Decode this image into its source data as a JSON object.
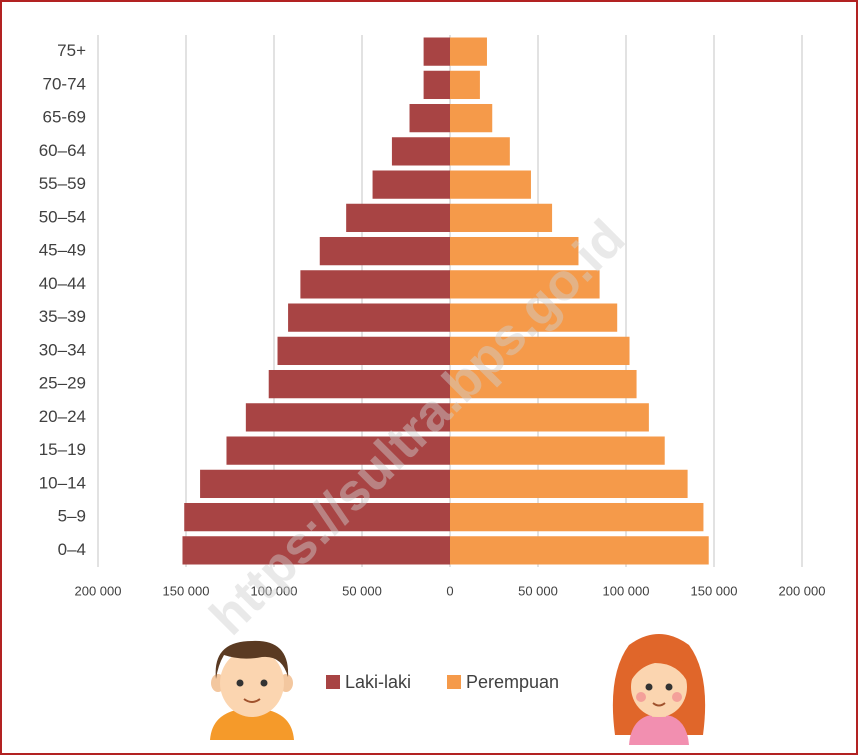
{
  "chart_data": {
    "type": "pyramid",
    "categories": [
      "75+",
      "70-74",
      "65-69",
      "60–64",
      "55–59",
      "50–54",
      "45–49",
      "40–44",
      "35–39",
      "30–34",
      "25–29",
      "20–24",
      "15–19",
      "10–14",
      "5–9",
      "0–4"
    ],
    "series": [
      {
        "name": "Laki-laki",
        "color": "#a84444",
        "values": [
          15000,
          15000,
          23000,
          33000,
          44000,
          59000,
          74000,
          85000,
          92000,
          98000,
          103000,
          116000,
          127000,
          142000,
          151000,
          152000
        ]
      },
      {
        "name": "Perempuan",
        "color": "#f59a4a",
        "values": [
          21000,
          17000,
          24000,
          34000,
          46000,
          58000,
          73000,
          85000,
          95000,
          102000,
          106000,
          113000,
          122000,
          135000,
          144000,
          147000
        ]
      }
    ],
    "xlim": [
      -200000,
      200000
    ],
    "xticks": [
      {
        "value": -200000,
        "label": "200 000"
      },
      {
        "value": -150000,
        "label": "150 000"
      },
      {
        "value": -100000,
        "label": "100 000"
      },
      {
        "value": -50000,
        "label": "50 000"
      },
      0,
      {
        "value": 50000,
        "label": "50 000"
      },
      {
        "value": 100000,
        "label": "100 000"
      },
      {
        "value": 150000,
        "label": "150 000"
      },
      {
        "value": 200000,
        "label": "200 000"
      }
    ],
    "grid": true,
    "watermark": "https://sultra.bps.go.id"
  }
}
